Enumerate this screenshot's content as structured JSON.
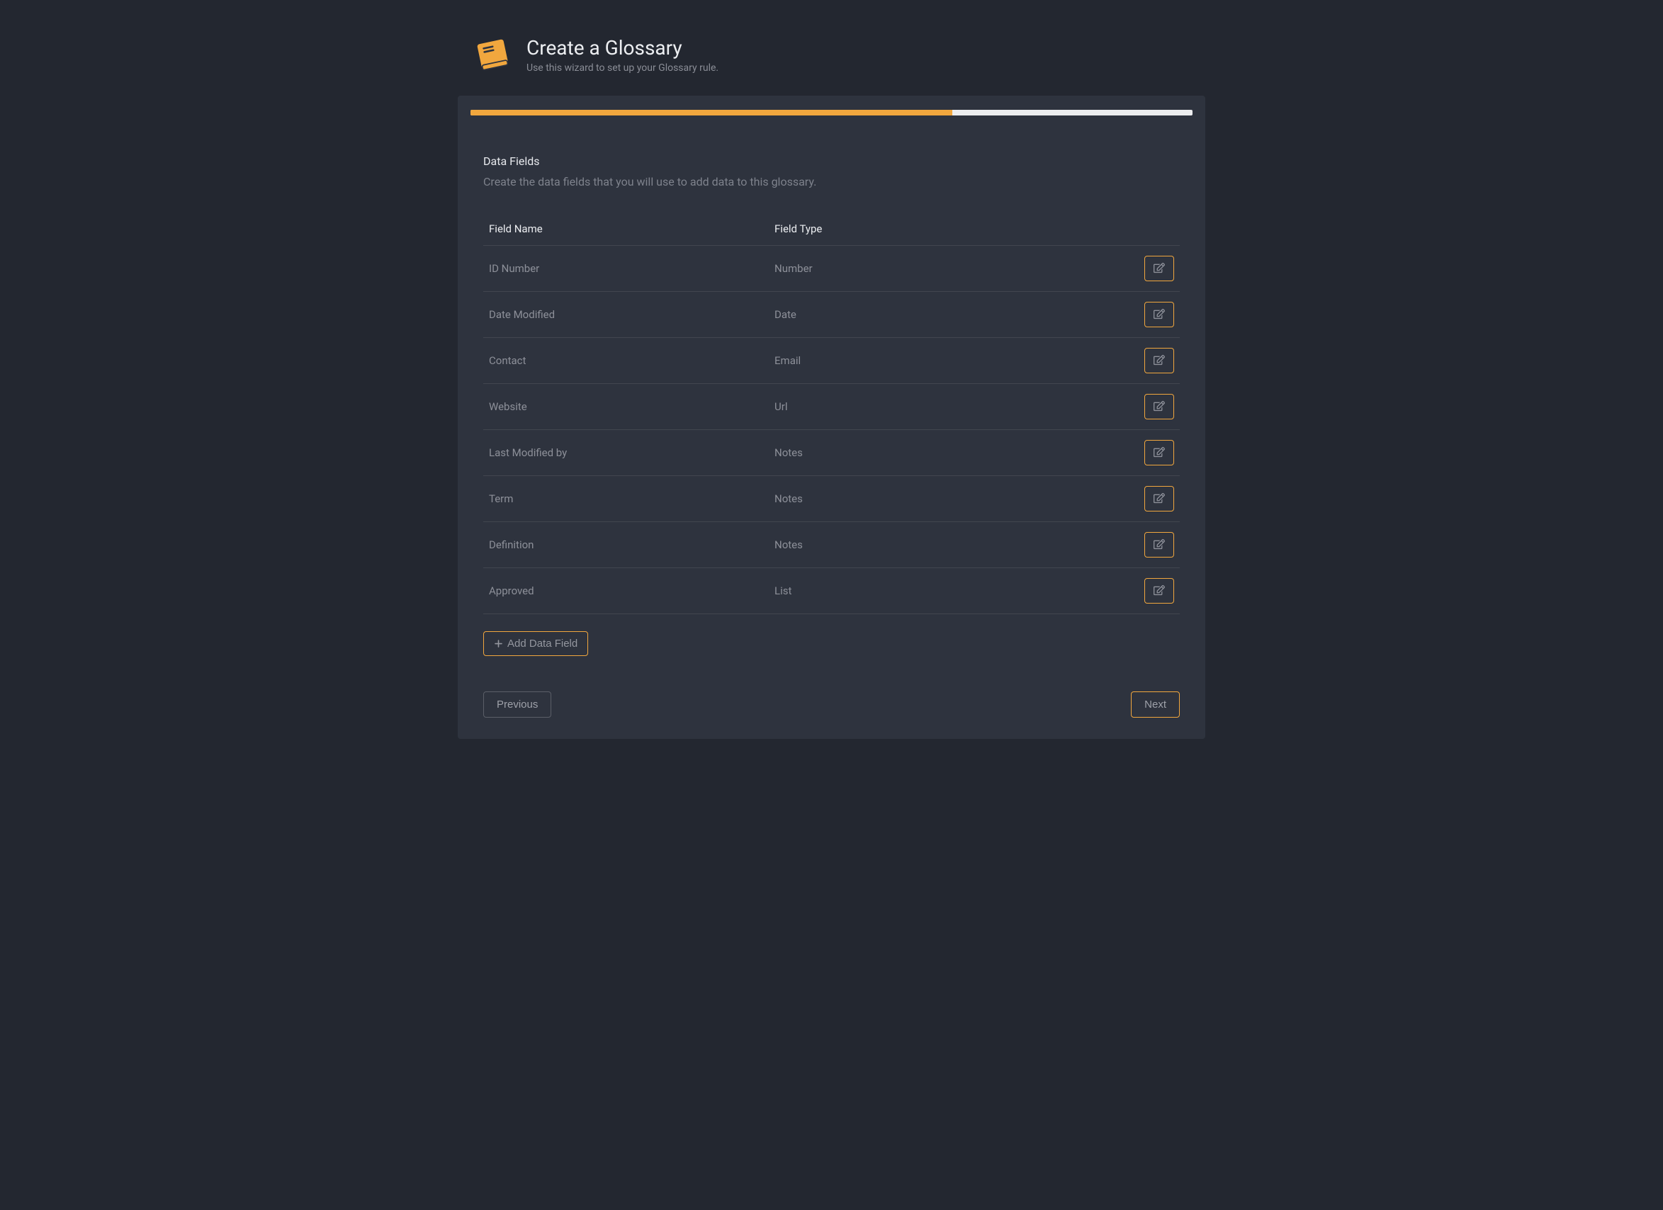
{
  "colors": {
    "page_bg": "#232730",
    "panel_bg": "#2e333e",
    "accent": "#f1a73e",
    "progress_track": "#ecedef",
    "text_primary": "#eceef1",
    "text_muted": "#8d9099",
    "border": "#42464f",
    "prev_border": "#5b5f68"
  },
  "header": {
    "title": "Create a Glossary",
    "subtitle": "Use this wizard to set up your Glossary rule.",
    "icon": "book-icon",
    "icon_color": "#f1a73e"
  },
  "progress": {
    "percent": 66.7
  },
  "section": {
    "title": "Data Fields",
    "description": "Create the data fields that you will use to add data to this glossary."
  },
  "table": {
    "columns": [
      "Field Name",
      "Field Type"
    ],
    "rows": [
      {
        "name": "ID Number",
        "type": "Number"
      },
      {
        "name": "Date Modified",
        "type": "Date"
      },
      {
        "name": "Contact",
        "type": "Email"
      },
      {
        "name": "Website",
        "type": "Url"
      },
      {
        "name": "Last Modified by",
        "type": "Notes"
      },
      {
        "name": "Term",
        "type": "Notes"
      },
      {
        "name": "Definition",
        "type": "Notes"
      },
      {
        "name": "Approved",
        "type": "List"
      }
    ]
  },
  "buttons": {
    "add": "Add Data Field",
    "previous": "Previous",
    "next": "Next"
  }
}
